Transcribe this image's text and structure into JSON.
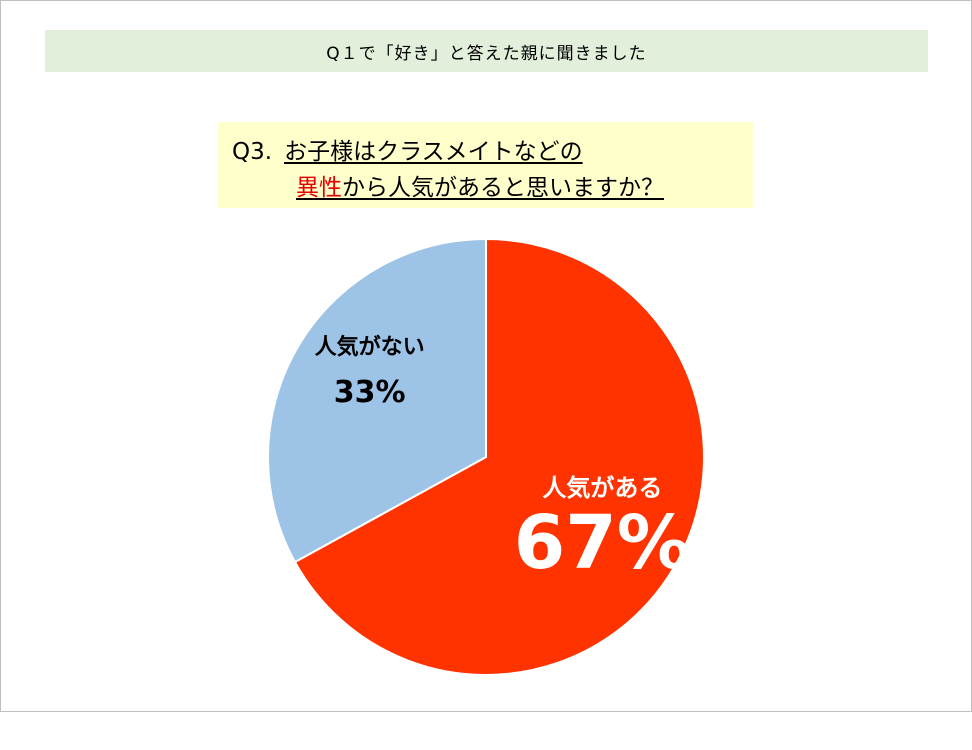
{
  "header": {
    "title": "Q１で「好き」と答えた親に聞きました"
  },
  "question": {
    "number": "Q3.",
    "line1": "お子様はクラスメイトなどの",
    "line2_highlight": "異性",
    "line2_rest": "から人気があると思いますか？"
  },
  "colors": {
    "popular": "#ff3300",
    "not_popular": "#9dc3e6",
    "header_bg": "#e2efda",
    "question_bg": "#ffffcc",
    "highlight_text": "#e60000"
  },
  "chart_data": {
    "type": "pie",
    "start": "12 o'clock",
    "direction": "clockwise",
    "slices": [
      {
        "label": "人気がある",
        "value": 67,
        "display": "67%",
        "color": "#ff3300",
        "text_color": "#ffffff"
      },
      {
        "label": "人気がない",
        "value": 33,
        "display": "33%",
        "color": "#9dc3e6",
        "text_color": "#000000"
      }
    ]
  }
}
